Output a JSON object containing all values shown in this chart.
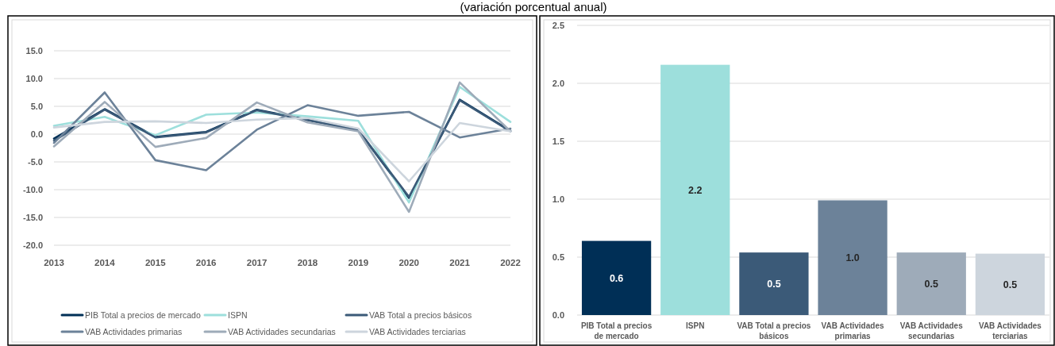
{
  "chart_data": [
    {
      "type": "line",
      "subtitle": "(variación porcentual anual)",
      "categories": [
        "2013",
        "2014",
        "2015",
        "2016",
        "2017",
        "2018",
        "2019",
        "2020",
        "2021",
        "2022"
      ],
      "series": [
        {
          "name": "PIB Total a precios de mercado",
          "color": "#002f56",
          "values": [
            -0.8,
            4.5,
            -0.5,
            0.4,
            4.4,
            2.6,
            0.7,
            -11.5,
            6.2,
            0.6
          ]
        },
        {
          "name": "ISPN",
          "color": "#9ddfdc",
          "values": [
            1.5,
            3.1,
            -0.2,
            3.5,
            3.9,
            3.2,
            2.4,
            -12.3,
            8.5,
            2.2
          ]
        },
        {
          "name": "VAB Total a precios básicos",
          "color": "#3b5a78",
          "values": [
            -1.2,
            4.4,
            -0.6,
            0.3,
            4.3,
            2.5,
            0.7,
            -11.3,
            6.1,
            0.5
          ]
        },
        {
          "name": "VAB Actividades primarias",
          "color": "#6c8299",
          "values": [
            -1.6,
            7.5,
            -4.7,
            -6.5,
            0.8,
            5.2,
            3.3,
            4.0,
            -0.6,
            1.0
          ]
        },
        {
          "name": "VAB Actividades secundarias",
          "color": "#9eabb9",
          "values": [
            -2.2,
            5.8,
            -2.3,
            -0.7,
            5.7,
            2.1,
            0.5,
            -14.0,
            9.3,
            0.5
          ]
        },
        {
          "name": "VAB Actividades terciarias",
          "color": "#cdd5dd",
          "values": [
            1.2,
            2.2,
            2.3,
            2.0,
            2.6,
            2.9,
            1.0,
            -8.5,
            2.0,
            0.5
          ]
        }
      ],
      "ylim": [
        -20,
        15
      ],
      "yticks": [
        {
          "value": -20,
          "label": "-20.0"
        },
        {
          "value": -15,
          "label": "-15.0"
        },
        {
          "value": -10,
          "label": "-10.0"
        },
        {
          "value": -5,
          "label": "-5.0"
        },
        {
          "value": 0,
          "label": "0.0"
        },
        {
          "value": 5,
          "label": "5.0"
        },
        {
          "value": 10,
          "label": "10.0"
        },
        {
          "value": 15,
          "label": "15.0"
        }
      ],
      "grid": "y",
      "legend": "bottom"
    },
    {
      "type": "bar",
      "categories": [
        "PIB Total a precios de mercado",
        "ISPN",
        "VAB Total a precios básicos",
        "VAB Actividades primarias",
        "VAB Actividades secundarias",
        "VAB Actividades terciarias"
      ],
      "values": [
        0.64,
        2.16,
        0.54,
        0.99,
        0.54,
        0.53
      ],
      "colors": [
        "#002f56",
        "#9ddfdc",
        "#3b5a78",
        "#6c8299",
        "#9eabb9",
        "#cdd5dd"
      ],
      "value_labels": [
        "0.6",
        "2.2",
        "0.5",
        "1.0",
        "0.5",
        "0.5"
      ],
      "ylim": [
        0,
        2.5
      ],
      "yticks": [
        {
          "value": 0,
          "label": "0.0"
        },
        {
          "value": 0.5,
          "label": "0.5"
        },
        {
          "value": 1,
          "label": "1.0"
        },
        {
          "value": 1.5,
          "label": "1.5"
        },
        {
          "value": 2,
          "label": "2.0"
        },
        {
          "value": 2.5,
          "label": "2.5"
        }
      ],
      "grid": "y"
    }
  ]
}
